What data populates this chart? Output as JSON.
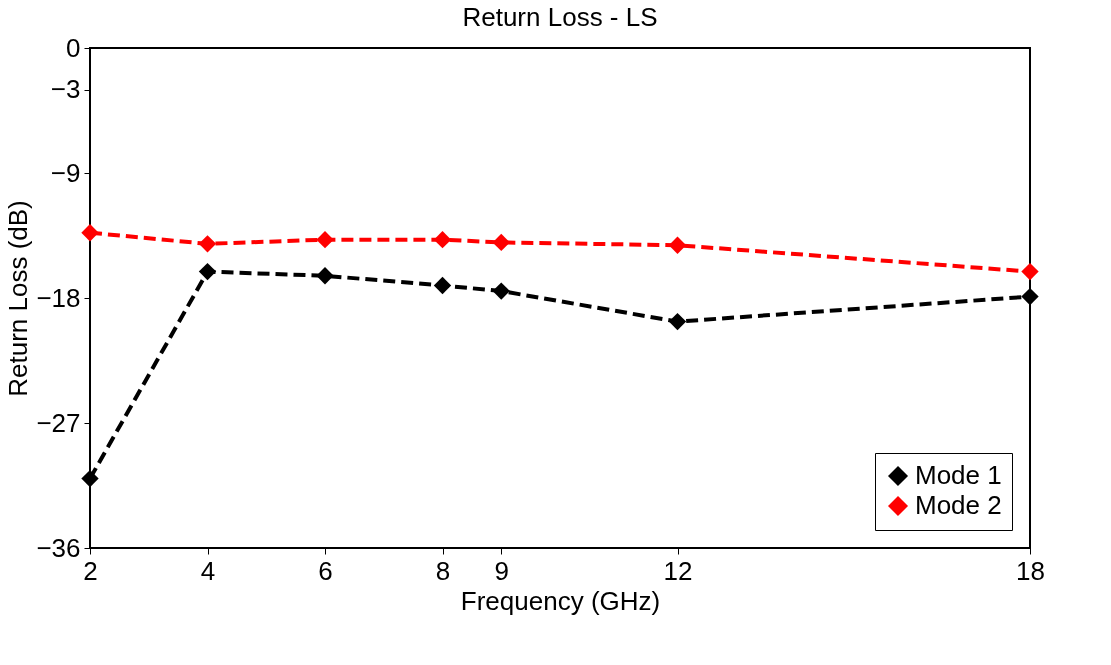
{
  "chart_data": {
    "type": "line",
    "title": "Return Loss - LS",
    "xlabel": "Frequency (GHz)",
    "ylabel": "Return Loss (dB)",
    "x": [
      2,
      4,
      6,
      8,
      9,
      12,
      18
    ],
    "series": [
      {
        "name": "Mode 1",
        "color": "#000000",
        "line_style": "dashed",
        "values": [
          -31.0,
          -16.1,
          -16.4,
          -17.1,
          -17.5,
          -19.7,
          -17.9
        ]
      },
      {
        "name": "Mode 2",
        "color": "#ff0000",
        "line_style": "dashed",
        "values": [
          -13.3,
          -14.1,
          -13.8,
          -13.8,
          -14.0,
          -14.2,
          -16.1
        ]
      }
    ],
    "xlim": [
      2,
      18
    ],
    "xticks": [
      2,
      4,
      6,
      8,
      9,
      12,
      18
    ],
    "ylim": [
      -36,
      0
    ],
    "yticks": [
      -36,
      -27,
      -18,
      -9,
      -3,
      0
    ],
    "marker": "diamond",
    "legend": "bottom right",
    "grid": false
  }
}
